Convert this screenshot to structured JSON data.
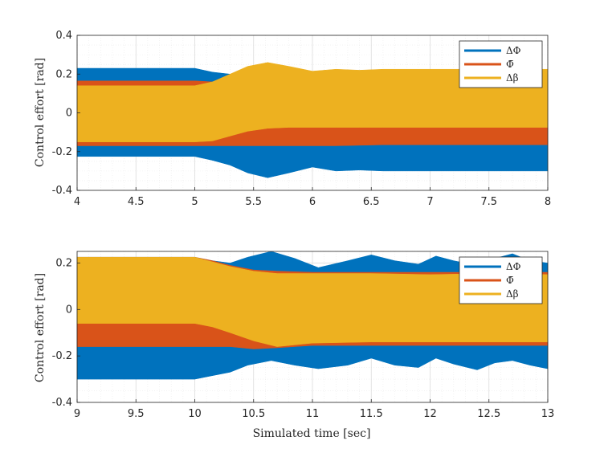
{
  "colors": {
    "dPhi": "#0072BD",
    "phibar": "#D95319",
    "dbeta": "#EDB120",
    "grid": "#d9d9d9",
    "axis": "#262626"
  },
  "chart_data": [
    {
      "type": "area",
      "title": "",
      "xlabel": "",
      "ylabel": "Control effort  [rad]",
      "xlim": [
        4,
        8
      ],
      "ylim": [
        -0.4,
        0.4
      ],
      "xticks": [
        "4",
        "4.5",
        "5",
        "5.5",
        "6",
        "6.5",
        "7",
        "7.5",
        "8"
      ],
      "yticks": [
        "-0.4",
        "-0.2",
        "0",
        "0.2",
        "0.4"
      ],
      "grid": true,
      "minor_grid": true,
      "legend": {
        "position": "top-right",
        "entries": [
          "ΔΦ",
          "Φ̄",
          "Δβ"
        ]
      },
      "series": [
        {
          "name": "ΔΦ",
          "x": [
            4,
            5.0,
            5.15,
            5.3,
            5.45,
            5.62,
            5.8,
            6.0,
            6.2,
            6.4,
            6.6,
            6.65,
            8
          ],
          "upper": [
            0.23,
            0.23,
            0.21,
            0.2,
            0.2,
            0.2,
            0.2,
            0.2,
            0.2,
            0.2,
            0.2,
            0.2,
            0.2
          ],
          "lower": [
            -0.225,
            -0.225,
            -0.245,
            -0.27,
            -0.31,
            -0.335,
            -0.31,
            -0.28,
            -0.3,
            -0.295,
            -0.3,
            -0.3,
            -0.3
          ]
        },
        {
          "name": "Φ̄",
          "x": [
            4,
            5.0,
            5.15,
            5.3,
            5.5,
            5.8,
            6.0,
            6.2,
            6.6,
            8
          ],
          "upper": [
            0.165,
            0.165,
            0.16,
            0.15,
            0.14,
            0.14,
            0.14,
            0.14,
            0.14,
            0.14
          ],
          "lower": [
            -0.17,
            -0.17,
            -0.17,
            -0.17,
            -0.17,
            -0.17,
            -0.17,
            -0.17,
            -0.165,
            -0.165
          ]
        },
        {
          "name": "Δβ",
          "x": [
            4,
            5.0,
            5.15,
            5.3,
            5.45,
            5.62,
            5.8,
            6.0,
            6.2,
            6.4,
            6.6,
            7.0,
            8
          ],
          "upper": [
            0.14,
            0.14,
            0.16,
            0.2,
            0.24,
            0.26,
            0.24,
            0.215,
            0.225,
            0.22,
            0.225,
            0.225,
            0.225
          ],
          "lower": [
            -0.15,
            -0.15,
            -0.145,
            -0.12,
            -0.095,
            -0.08,
            -0.075,
            -0.075,
            -0.075,
            -0.075,
            -0.075,
            -0.075,
            -0.075
          ]
        }
      ]
    },
    {
      "type": "area",
      "title": "",
      "xlabel": "Simulated time  [sec]",
      "ylabel": "Control effort  [rad]",
      "xlim": [
        9,
        13
      ],
      "ylim": [
        -0.4,
        0.25
      ],
      "xticks": [
        "9",
        "9.5",
        "10",
        "10.5",
        "11",
        "11.5",
        "12",
        "12.5",
        "13"
      ],
      "yticks": [
        "-0.4",
        "-0.2",
        "0",
        "0.2"
      ],
      "grid": true,
      "minor_grid": true,
      "legend": {
        "position": "top-right",
        "entries": [
          "ΔΦ",
          "Φ̄",
          "Δβ"
        ]
      },
      "series": [
        {
          "name": "ΔΦ",
          "x": [
            9,
            10.0,
            10.15,
            10.3,
            10.45,
            10.65,
            10.85,
            11.05,
            11.3,
            11.5,
            11.7,
            11.9,
            12.05,
            12.2,
            12.4,
            12.55,
            12.7,
            12.85,
            13
          ],
          "upper": [
            0.225,
            0.225,
            0.21,
            0.2,
            0.225,
            0.25,
            0.22,
            0.18,
            0.21,
            0.235,
            0.21,
            0.195,
            0.23,
            0.21,
            0.19,
            0.22,
            0.24,
            0.21,
            0.2
          ],
          "lower": [
            -0.3,
            -0.3,
            -0.285,
            -0.27,
            -0.24,
            -0.22,
            -0.24,
            -0.255,
            -0.24,
            -0.21,
            -0.24,
            -0.25,
            -0.21,
            -0.235,
            -0.26,
            -0.23,
            -0.22,
            -0.24,
            -0.255
          ]
        },
        {
          "name": "Φ̄",
          "x": [
            9,
            10.0,
            10.15,
            10.3,
            10.5,
            10.7,
            11.0,
            11.5,
            12.0,
            12.5,
            13
          ],
          "upper": [
            0.225,
            0.225,
            0.21,
            0.19,
            0.17,
            0.165,
            0.16,
            0.16,
            0.16,
            0.16,
            0.16
          ],
          "lower": [
            -0.16,
            -0.16,
            -0.16,
            -0.16,
            -0.17,
            -0.165,
            -0.155,
            -0.155,
            -0.155,
            -0.155,
            -0.155
          ]
        },
        {
          "name": "Δβ",
          "x": [
            9,
            10.0,
            10.15,
            10.3,
            10.5,
            10.7,
            11.0,
            11.5,
            12.0,
            12.5,
            13
          ],
          "upper": [
            0.225,
            0.225,
            0.205,
            0.185,
            0.165,
            0.155,
            0.155,
            0.155,
            0.15,
            0.155,
            0.15
          ],
          "lower": [
            -0.06,
            -0.06,
            -0.075,
            -0.1,
            -0.135,
            -0.16,
            -0.145,
            -0.14,
            -0.14,
            -0.14,
            -0.14
          ]
        }
      ]
    }
  ]
}
